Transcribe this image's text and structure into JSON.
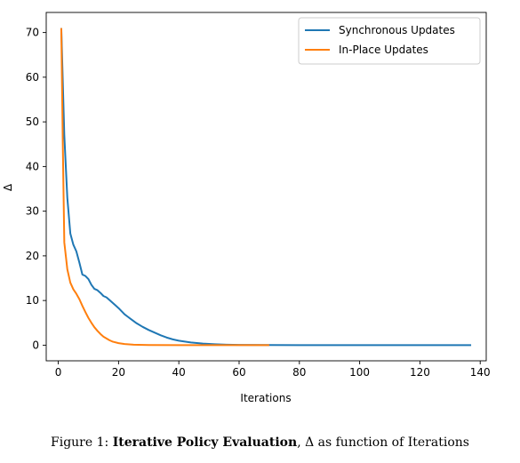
{
  "chart_data": {
    "type": "line",
    "xlabel": "Iterations",
    "ylabel": "Δ",
    "xlim": [
      -4,
      142
    ],
    "ylim": [
      -3.5,
      74.5
    ],
    "xticks": [
      0,
      20,
      40,
      60,
      80,
      100,
      120,
      140
    ],
    "yticks": [
      0,
      10,
      20,
      30,
      40,
      50,
      60,
      70
    ],
    "grid": false,
    "legend": "top-right",
    "series": [
      {
        "name": "Synchronous Updates",
        "color": "#1f77b4",
        "points": [
          [
            1,
            71
          ],
          [
            2,
            47
          ],
          [
            3,
            33
          ],
          [
            4,
            25
          ],
          [
            5,
            22.5
          ],
          [
            6,
            21
          ],
          [
            7,
            18.5
          ],
          [
            8,
            15.8
          ],
          [
            9,
            15.5
          ],
          [
            10,
            14.8
          ],
          [
            11,
            13.5
          ],
          [
            12,
            12.6
          ],
          [
            13,
            12.3
          ],
          [
            14,
            11.7
          ],
          [
            15,
            11.0
          ],
          [
            16,
            10.7
          ],
          [
            17,
            10.1
          ],
          [
            18,
            9.5
          ],
          [
            19,
            8.9
          ],
          [
            20,
            8.3
          ],
          [
            21,
            7.6
          ],
          [
            22,
            6.9
          ],
          [
            23,
            6.4
          ],
          [
            24,
            5.9
          ],
          [
            25,
            5.4
          ],
          [
            26,
            4.9
          ],
          [
            28,
            4.1
          ],
          [
            30,
            3.4
          ],
          [
            32,
            2.8
          ],
          [
            34,
            2.2
          ],
          [
            36,
            1.7
          ],
          [
            38,
            1.3
          ],
          [
            40,
            1.0
          ],
          [
            44,
            0.6
          ],
          [
            48,
            0.35
          ],
          [
            52,
            0.2
          ],
          [
            56,
            0.1
          ],
          [
            60,
            0.05
          ],
          [
            70,
            0.02
          ],
          [
            80,
            0.01
          ],
          [
            100,
            0.0
          ],
          [
            120,
            0.0
          ],
          [
            137,
            0.0
          ]
        ]
      },
      {
        "name": "In-Place Updates",
        "color": "#ff7f0e",
        "points": [
          [
            1,
            71
          ],
          [
            1.5,
            45
          ],
          [
            2,
            23
          ],
          [
            2.5,
            20
          ],
          [
            3,
            17
          ],
          [
            4,
            14
          ],
          [
            5,
            12.5
          ],
          [
            6,
            11.5
          ],
          [
            7,
            10.3
          ],
          [
            8,
            8.8
          ],
          [
            9,
            7.4
          ],
          [
            10,
            6.1
          ],
          [
            11,
            5.0
          ],
          [
            12,
            4.0
          ],
          [
            13,
            3.2
          ],
          [
            14,
            2.5
          ],
          [
            15,
            1.9
          ],
          [
            16,
            1.5
          ],
          [
            17,
            1.1
          ],
          [
            18,
            0.8
          ],
          [
            20,
            0.45
          ],
          [
            22,
            0.25
          ],
          [
            25,
            0.1
          ],
          [
            30,
            0.03
          ],
          [
            40,
            0.01
          ],
          [
            50,
            0.0
          ],
          [
            60,
            0.0
          ],
          [
            70,
            0.0
          ]
        ]
      }
    ]
  },
  "caption": {
    "label": "Figure 1:",
    "bold": "Iterative Policy Evaluation",
    "rest": ", Δ as function of Iterations"
  }
}
